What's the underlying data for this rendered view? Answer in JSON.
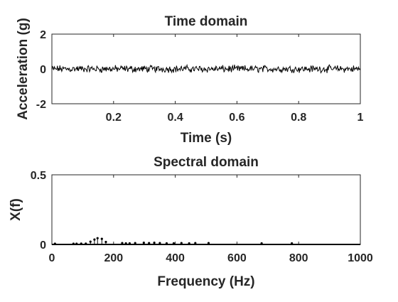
{
  "chart_data": [
    {
      "type": "line",
      "title": "Time domain",
      "xlabel": "Time (s)",
      "ylabel": "Acceleration (g)",
      "xlim": [
        0,
        1
      ],
      "ylim": [
        -2,
        2
      ],
      "xticks": [
        0.2,
        0.4,
        0.6,
        0.8,
        1
      ],
      "xtick_labels": [
        "0.2",
        "0.4",
        "0.6",
        "0.8",
        "1"
      ],
      "yticks": [
        2,
        0,
        -2
      ],
      "ytick_labels": [
        "2",
        "0",
        "-2"
      ],
      "grid": false,
      "color": "#000000",
      "series": [
        {
          "description": "random vibration noise signal",
          "samples": 500,
          "amplitude_range": [
            -0.25,
            0.25
          ]
        }
      ]
    },
    {
      "type": "stem",
      "title": "Spectral domain",
      "xlabel": "Frequency (Hz)",
      "ylabel": "X(f)",
      "xlim": [
        0,
        1000
      ],
      "ylim": [
        0,
        0.5
      ],
      "xticks": [
        0,
        200,
        400,
        600,
        800,
        1000
      ],
      "xtick_labels": [
        "0",
        "200",
        "400",
        "600",
        "800",
        "1000"
      ],
      "yticks": [
        0.5,
        0
      ],
      "ytick_labels": [
        "0.5",
        "0"
      ],
      "grid": false,
      "color": "#000000",
      "x": [
        10,
        70,
        80,
        95,
        110,
        125,
        138,
        148,
        162,
        175,
        228,
        240,
        252,
        270,
        298,
        315,
        332,
        350,
        372,
        395,
        420,
        445,
        465,
        508,
        680,
        778
      ],
      "y": [
        0.005,
        0.005,
        0.005,
        0.006,
        0.006,
        0.02,
        0.035,
        0.045,
        0.04,
        0.018,
        0.01,
        0.008,
        0.008,
        0.01,
        0.012,
        0.01,
        0.012,
        0.01,
        0.008,
        0.008,
        0.01,
        0.008,
        0.01,
        0.01,
        0.008,
        0.008
      ]
    }
  ]
}
